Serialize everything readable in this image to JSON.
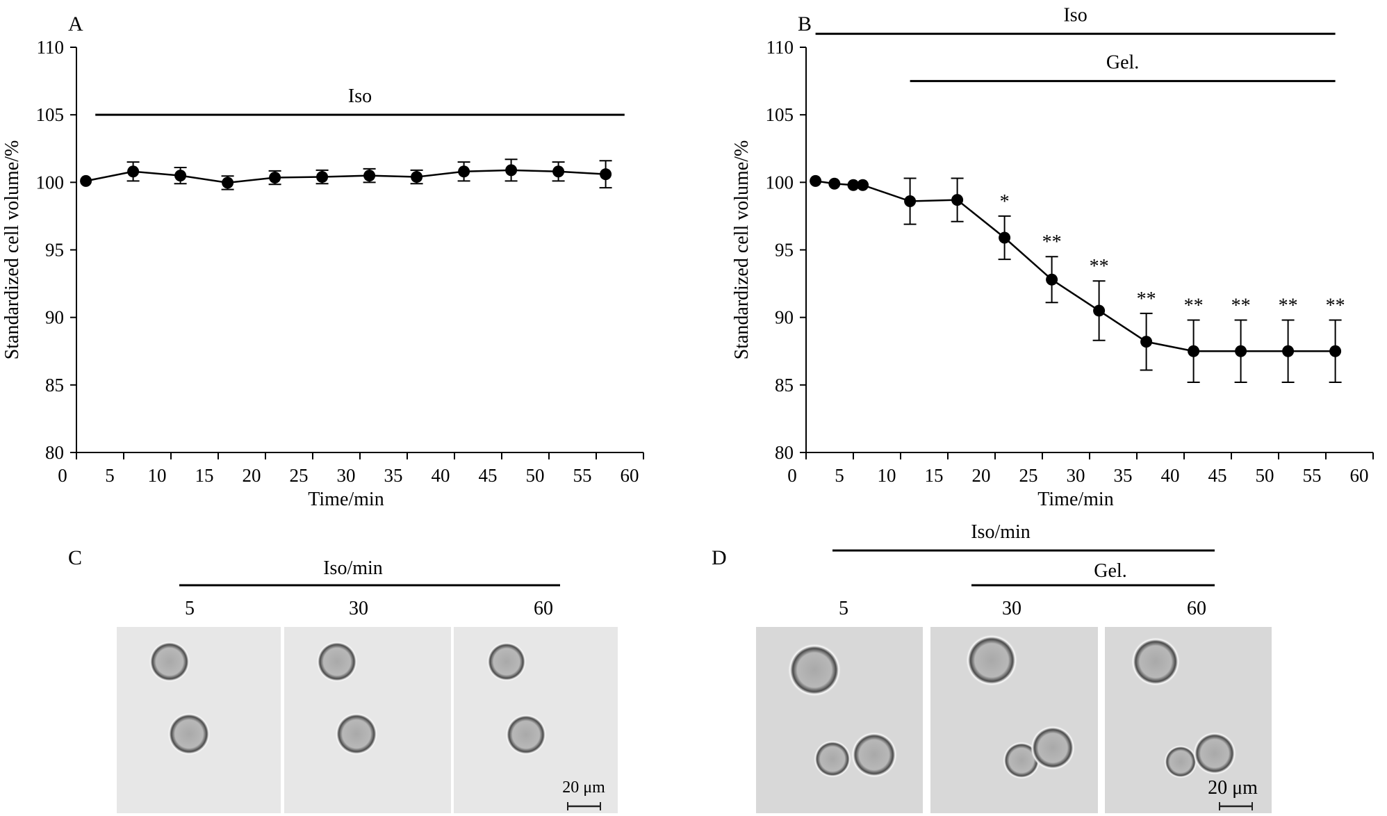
{
  "chart_data": [
    {
      "type": "line",
      "panel": "A",
      "xlabel": "Time/min",
      "ylabel": "Standardized cell volume/%",
      "xlim": [
        0,
        60
      ],
      "ylim": [
        80,
        110
      ],
      "xticks": [
        0,
        5,
        10,
        15,
        20,
        25,
        30,
        35,
        40,
        45,
        50,
        55,
        60
      ],
      "yticks": [
        80,
        85,
        90,
        95,
        100,
        105,
        110
      ],
      "x": [
        1,
        6,
        11,
        16,
        21,
        26,
        31,
        36,
        41,
        46,
        51,
        56
      ],
      "y": [
        100.1,
        100.8,
        100.5,
        99.97,
        100.35,
        100.4,
        100.5,
        100.4,
        100.8,
        100.9,
        100.8,
        100.6
      ],
      "err": [
        0,
        0.7,
        0.6,
        0.5,
        0.5,
        0.5,
        0.5,
        0.5,
        0.7,
        0.8,
        0.7,
        1.0
      ],
      "sig": [
        "",
        "",
        "",
        "",
        "",
        "",
        "",
        "",
        "",
        "",
        "",
        ""
      ],
      "bars": [
        {
          "label": "Iso",
          "x_start": 2,
          "x_end": 58,
          "y_level": 105
        }
      ]
    },
    {
      "type": "line",
      "panel": "B",
      "xlabel": "Time/min",
      "ylabel": "Standardized cell volume/%",
      "xlim": [
        0,
        60
      ],
      "ylim": [
        80,
        110
      ],
      "xticks": [
        0,
        5,
        10,
        15,
        20,
        25,
        30,
        35,
        40,
        45,
        50,
        55,
        60
      ],
      "yticks": [
        80,
        85,
        90,
        95,
        100,
        105,
        110
      ],
      "x": [
        1,
        3,
        5,
        6,
        11,
        16,
        21,
        26,
        31,
        36,
        41,
        46,
        51,
        56
      ],
      "y": [
        100.1,
        99.9,
        99.8,
        99.8,
        98.6,
        98.7,
        95.9,
        92.8,
        90.5,
        88.2,
        87.5,
        87.5,
        87.5,
        87.5
      ],
      "err": [
        0,
        0,
        0,
        0,
        1.7,
        1.6,
        1.6,
        1.7,
        2.2,
        2.1,
        2.3,
        2.3,
        2.3,
        2.3
      ],
      "sig": [
        "",
        "",
        "",
        "",
        "",
        "",
        "*",
        "**",
        "**",
        "**",
        "**",
        "**",
        "**",
        "**"
      ],
      "bars": [
        {
          "label": "Iso",
          "x_start": 1,
          "x_end": 56,
          "y_level": 111
        },
        {
          "label": "Gel.",
          "x_start": 11,
          "x_end": 56,
          "y_level": 107.5
        }
      ]
    }
  ],
  "panel_c": {
    "letter": "C",
    "bar_label": "Iso/min",
    "time_labels": [
      "5",
      "30",
      "60"
    ],
    "scale_label": "20 μm"
  },
  "panel_d": {
    "letter": "D",
    "bar_label": "Iso/min",
    "gel_label": "Gel.",
    "time_labels": [
      "5",
      "30",
      "60"
    ],
    "scale_label": "20 μm"
  }
}
